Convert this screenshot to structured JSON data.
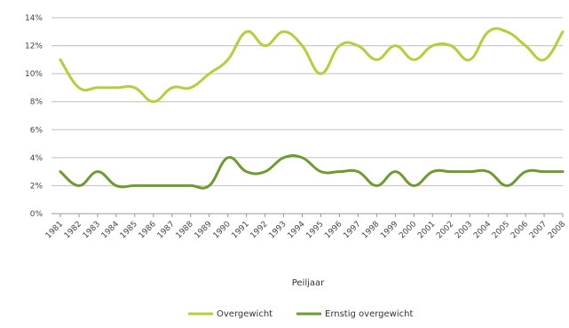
{
  "chart_data": {
    "type": "line",
    "title": "",
    "xlabel": "Peiljaar",
    "ylabel": "",
    "ylim": [
      0,
      14
    ],
    "yticks": [
      0,
      2,
      4,
      6,
      8,
      10,
      12,
      14
    ],
    "ytick_suffix": "%",
    "grid": "horizontal",
    "legend_position": "bottom",
    "categories": [
      "1981",
      "1982",
      "1983",
      "1984",
      "1985",
      "1986",
      "1987",
      "1988",
      "1989",
      "1990",
      "1991",
      "1992",
      "1993",
      "1994",
      "1995",
      "1996",
      "1997",
      "1998",
      "1999",
      "2000",
      "2001",
      "2002",
      "2003",
      "2004",
      "2005",
      "2006",
      "2007",
      "2008"
    ],
    "series": [
      {
        "name": "Overgewicht",
        "color": "#b5cf3a",
        "values": [
          11,
          9,
          9,
          9,
          9,
          8,
          9,
          9,
          10,
          11,
          13,
          12,
          13,
          12,
          10,
          12,
          12,
          11,
          12,
          11,
          12,
          12,
          11,
          13,
          13,
          12,
          11,
          13
        ]
      },
      {
        "name": "Ernstig overgewicht",
        "color": "#6e9a2f",
        "values": [
          3,
          2,
          3,
          2,
          2,
          2,
          2,
          2,
          2,
          4,
          3,
          3,
          4,
          4,
          3,
          3,
          3,
          2,
          3,
          2,
          3,
          3,
          3,
          3,
          2,
          3,
          3,
          3
        ]
      }
    ]
  }
}
